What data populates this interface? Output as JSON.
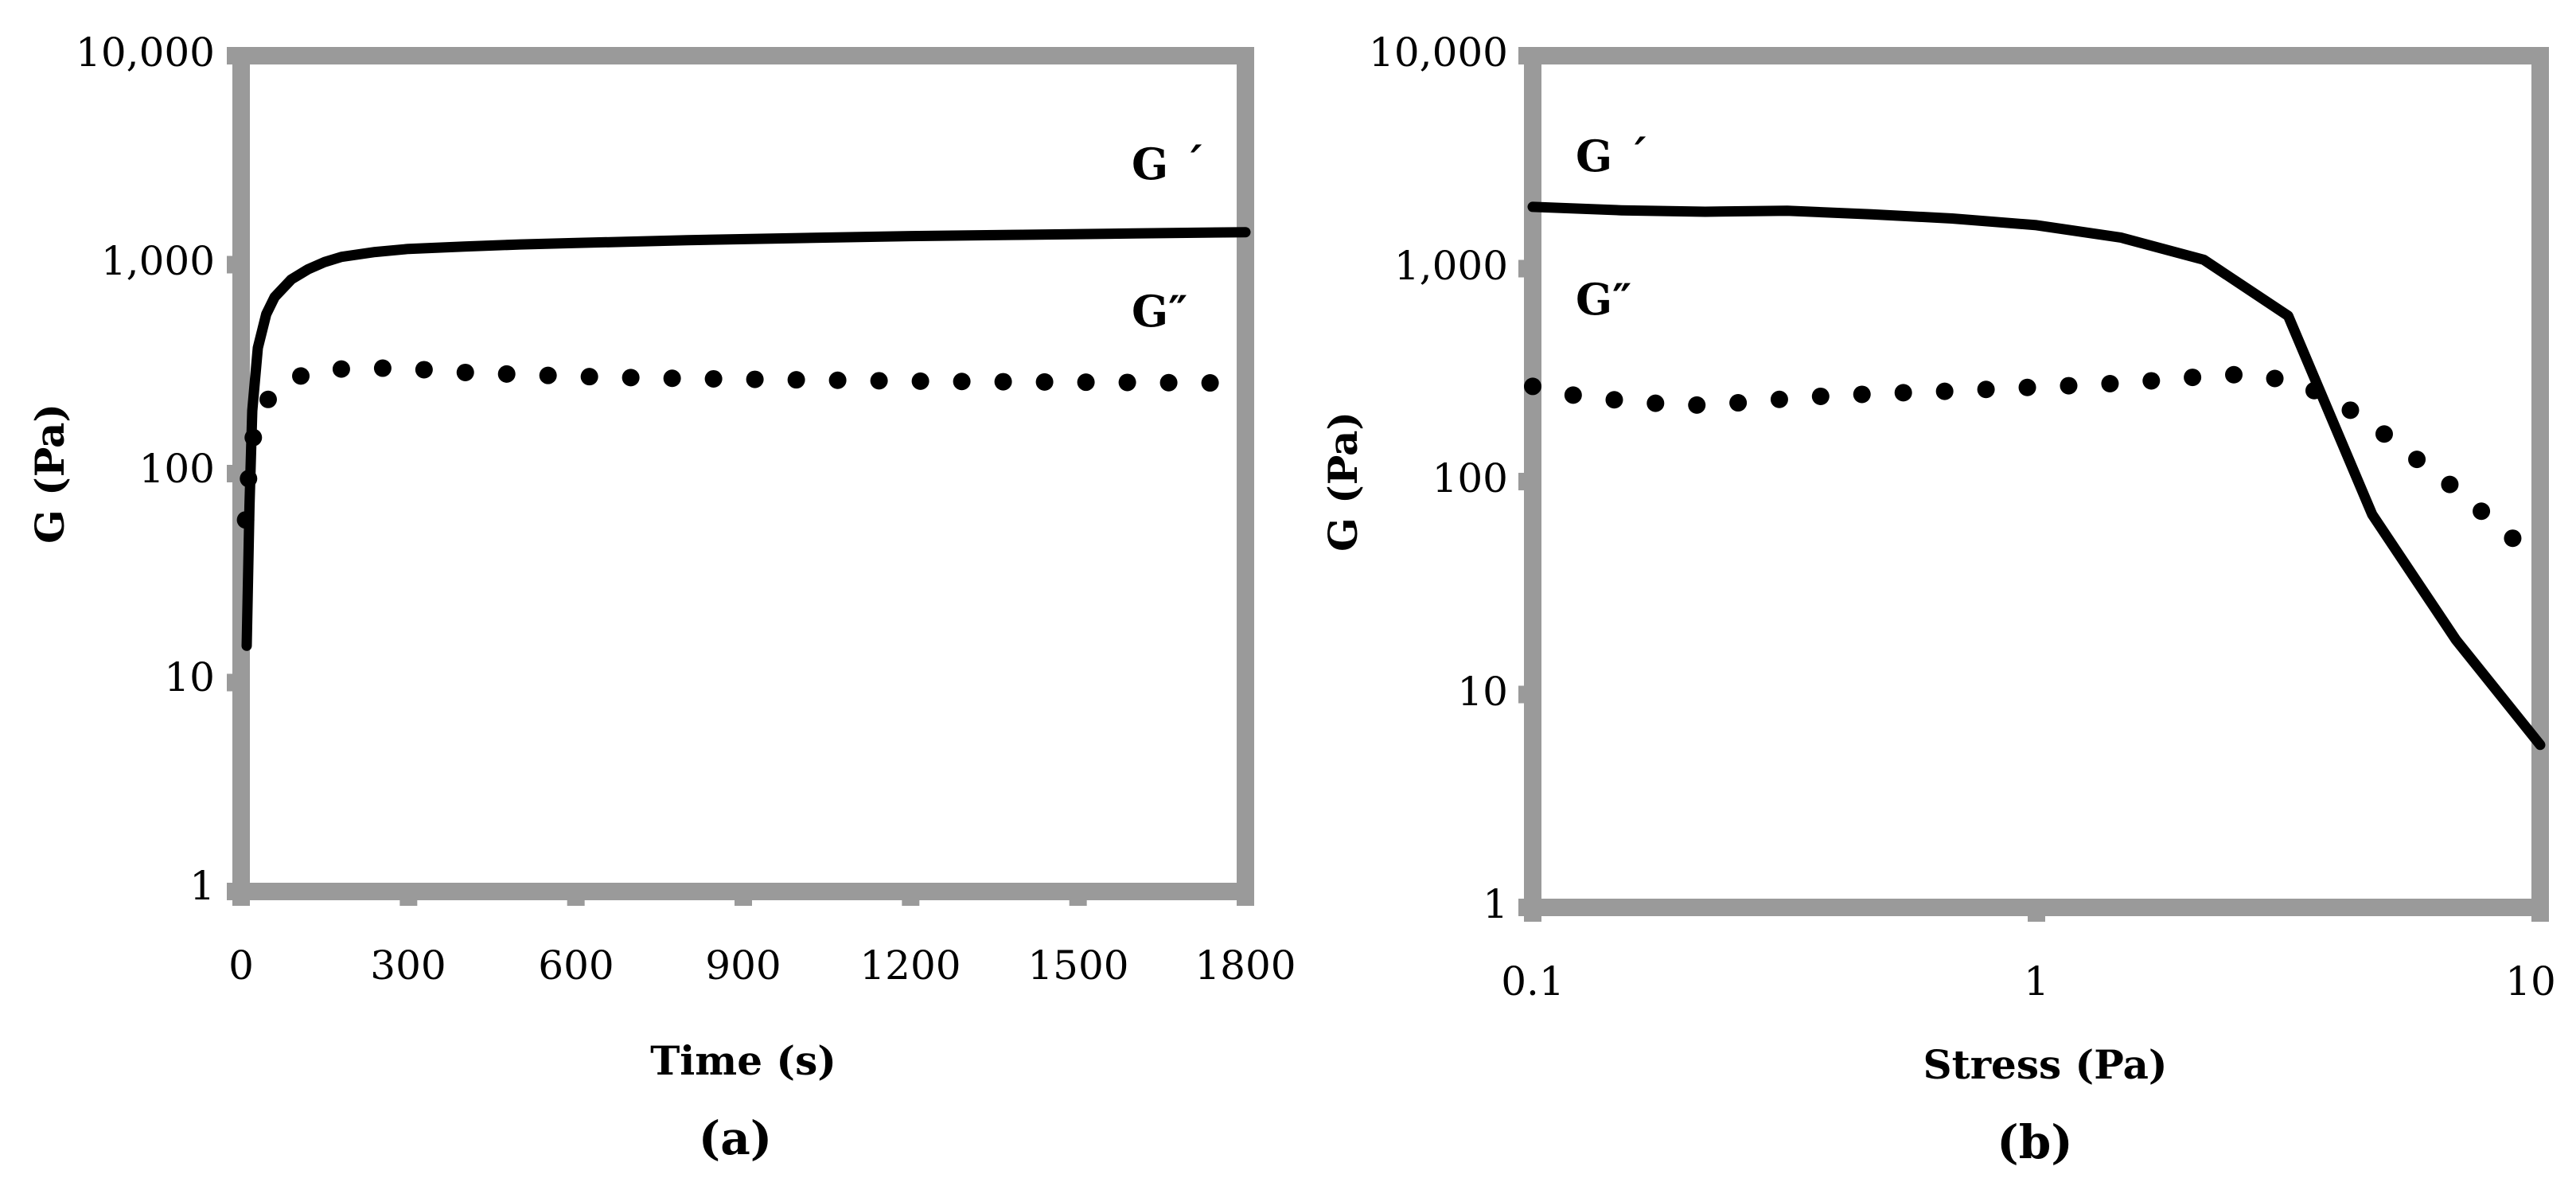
{
  "chart_data": [
    {
      "type": "line",
      "panel": "(a)",
      "xlabel": "Time (s)",
      "ylabel": "G (Pa)",
      "xscale": "linear",
      "yscale": "log",
      "xlim": [
        0,
        1800
      ],
      "ylim": [
        1,
        10000
      ],
      "x_ticks": [
        0,
        300,
        600,
        900,
        1200,
        1500,
        1800
      ],
      "x_tick_labels": [
        "0",
        "300",
        "600",
        "900",
        "1200",
        "1500",
        "1800"
      ],
      "y_ticks": [
        1,
        10,
        100,
        1000,
        10000
      ],
      "y_tick_labels": [
        "1",
        "10",
        "100",
        "1,000",
        "10,000"
      ],
      "grid": false,
      "series": [
        {
          "name": "G ′",
          "label": "G ´",
          "style": "solid",
          "x": [
            10,
            15,
            20,
            30,
            45,
            60,
            90,
            120,
            150,
            180,
            240,
            300,
            400,
            500,
            600,
            800,
            1000,
            1200,
            1400,
            1600,
            1800
          ],
          "y": [
            15,
            70,
            200,
            400,
            580,
            700,
            850,
            950,
            1030,
            1090,
            1150,
            1190,
            1220,
            1250,
            1270,
            1310,
            1340,
            1370,
            1390,
            1410,
            1430
          ]
        },
        {
          "name": "G ″",
          "label": "G″",
          "style": "dotted",
          "x": [
            8,
            15,
            22,
            30,
            45,
            60,
            90,
            150,
            240,
            300,
            400,
            500,
            600,
            700,
            800,
            900,
            1000,
            1100,
            1200,
            1300,
            1400,
            1500,
            1600,
            1700,
            1800
          ],
          "y": [
            60,
            110,
            150,
            185,
            220,
            250,
            285,
            315,
            320,
            318,
            305,
            298,
            292,
            288,
            285,
            283,
            281,
            279,
            277,
            276,
            275,
            274,
            273,
            272,
            271
          ]
        }
      ]
    },
    {
      "type": "line",
      "panel": "(b)",
      "xlabel": "Stress (Pa)",
      "ylabel": "G (Pa)",
      "xscale": "log",
      "yscale": "log",
      "xlim": [
        0.1,
        10
      ],
      "ylim": [
        1,
        10000
      ],
      "x_ticks": [
        0.1,
        1,
        10
      ],
      "x_tick_labels": [
        "0.1",
        "1",
        "10"
      ],
      "y_ticks": [
        1,
        10,
        100,
        1000,
        10000
      ],
      "y_tick_labels": [
        "1",
        "10",
        "100",
        "1,000",
        "10,000"
      ],
      "grid": false,
      "series": [
        {
          "name": "G ′",
          "label": "G ´",
          "style": "solid",
          "x": [
            0.1,
            0.15,
            0.22,
            0.32,
            0.47,
            0.68,
            1.0,
            1.47,
            2.15,
            3.16,
            4.64,
            6.81,
            10
          ],
          "y": [
            1950,
            1880,
            1850,
            1870,
            1800,
            1720,
            1600,
            1400,
            1100,
            600,
            70,
            18,
            5.8
          ]
        },
        {
          "name": "G ″",
          "label": "G″",
          "style": "dotted",
          "x": [
            0.1,
            0.12,
            0.15,
            0.18,
            0.22,
            0.26,
            0.32,
            0.38,
            0.47,
            0.56,
            0.68,
            0.82,
            1.0,
            1.21,
            1.47,
            1.78,
            2.15,
            2.61,
            3.16,
            3.83,
            4.64,
            5.62,
            6.81,
            8.25,
            10
          ],
          "y": [
            280,
            255,
            240,
            232,
            228,
            235,
            245,
            252,
            258,
            262,
            266,
            272,
            278,
            283,
            290,
            300,
            312,
            320,
            298,
            250,
            185,
            130,
            92,
            62,
            42
          ]
        }
      ]
    }
  ],
  "panels": [
    {
      "label": "(a)",
      "x_title": "Time (s)",
      "y_title": "G (Pa)",
      "gp_label": "G ´",
      "gpp_label": "G″",
      "x_tick_labels": [
        "0",
        "300",
        "600",
        "900",
        "1200",
        "1500",
        "1800"
      ],
      "y_tick_labels": [
        "1",
        "10",
        "100",
        "1,000",
        "10,000"
      ]
    },
    {
      "label": "(b)",
      "x_title": "Stress (Pa)",
      "y_title": "G (Pa)",
      "gp_label": "G ´",
      "gpp_label": "G″",
      "x_tick_labels": [
        "0.1",
        "1",
        "10"
      ],
      "y_tick_labels": [
        "1",
        "10",
        "100",
        "1,000",
        "10,000"
      ]
    }
  ],
  "colors": {
    "frame": "#9a9a9a",
    "series": "#000000",
    "background": "#ffffff"
  }
}
